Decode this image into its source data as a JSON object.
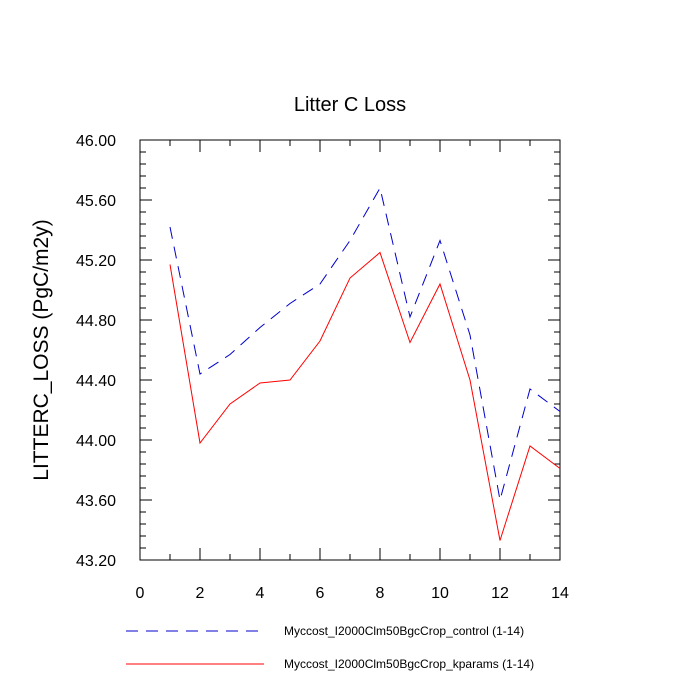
{
  "chart_data": {
    "type": "line",
    "title": "Litter C Loss",
    "xlabel": "",
    "ylabel": "LITTERC_LOSS  (PgC/m2y)",
    "xlim": [
      0,
      14
    ],
    "ylim": [
      43.2,
      46.0
    ],
    "x_ticks": [
      0,
      2,
      4,
      6,
      8,
      10,
      12,
      14
    ],
    "x_tick_labels": [
      "0",
      "2",
      "4",
      "6",
      "8",
      "10",
      "12",
      "14"
    ],
    "y_ticks": [
      43.2,
      43.6,
      44.0,
      44.4,
      44.8,
      45.2,
      45.6,
      46.0
    ],
    "y_tick_labels": [
      "43.20",
      "43.60",
      "44.00",
      "44.40",
      "44.80",
      "45.20",
      "45.60",
      "46.00"
    ],
    "grid": false,
    "legend_position": "bottom",
    "x": [
      1,
      2,
      3,
      4,
      5,
      6,
      7,
      8,
      9,
      10,
      11,
      12,
      13,
      14
    ],
    "series": [
      {
        "name": "Myccost_I2000Clm50BgcCrop_control (1-14)",
        "color": "#0000cc",
        "style": "dashed",
        "values": [
          45.42,
          44.44,
          44.57,
          44.75,
          44.91,
          45.04,
          45.33,
          45.68,
          44.82,
          45.33,
          44.7,
          43.6,
          44.34,
          44.19
        ]
      },
      {
        "name": "Myccost_I2000Clm50BgcCrop_kparams (1-14)",
        "color": "#ff0000",
        "style": "solid",
        "values": [
          45.17,
          43.98,
          44.24,
          44.38,
          44.4,
          44.66,
          45.08,
          45.25,
          44.65,
          45.04,
          44.4,
          43.33,
          43.96,
          43.81
        ]
      }
    ]
  }
}
